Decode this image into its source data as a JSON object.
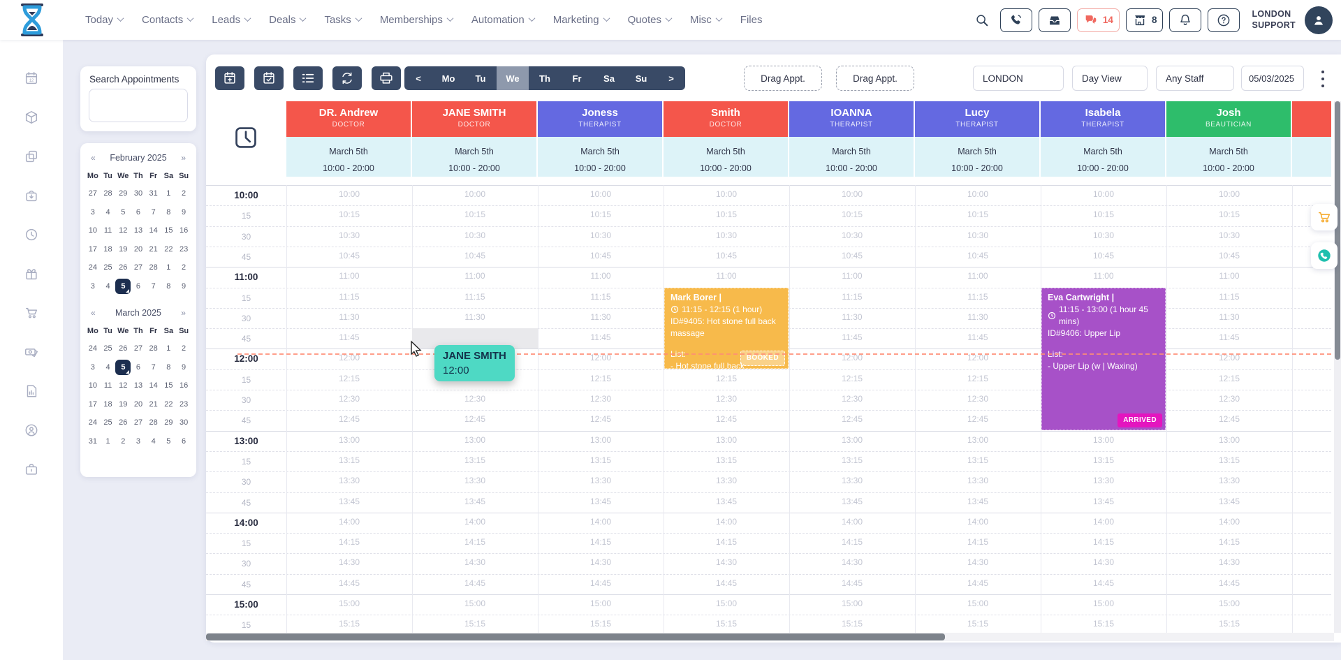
{
  "nav": {
    "items": [
      {
        "label": "Today",
        "has_menu": true
      },
      {
        "label": "Contacts",
        "has_menu": true
      },
      {
        "label": "Leads",
        "has_menu": true
      },
      {
        "label": "Deals",
        "has_menu": true
      },
      {
        "label": "Tasks",
        "has_menu": true
      },
      {
        "label": "Memberships",
        "has_menu": true
      },
      {
        "label": "Automation",
        "has_menu": true
      },
      {
        "label": "Marketing",
        "has_menu": true
      },
      {
        "label": "Quotes",
        "has_menu": true
      },
      {
        "label": "Misc",
        "has_menu": true
      },
      {
        "label": "Files",
        "has_menu": false
      }
    ]
  },
  "topbar": {
    "chat_count": "14",
    "store_count": "8",
    "user_line1": "LONDON",
    "user_line2": "SUPPORT",
    "icon_buttons": [
      "phone",
      "inbox",
      "chat",
      "store",
      "bell",
      "help"
    ]
  },
  "sidebar": {
    "icons": [
      "calendar-date",
      "package",
      "copy",
      "bag-arrow",
      "history",
      "gift",
      "cart",
      "money",
      "report",
      "user-circle",
      "briefcase"
    ]
  },
  "search_panel": {
    "title": "Search Appointments",
    "value": "",
    "placeholder": ""
  },
  "calendars": [
    {
      "title": "February 2025",
      "prev": "«",
      "next": "»",
      "weekdays": [
        "Mo",
        "Tu",
        "We",
        "Th",
        "Fr",
        "Sa",
        "Su"
      ],
      "weeks": [
        [
          "27",
          "28",
          "29",
          "30",
          "31",
          "1",
          "2"
        ],
        [
          "3",
          "4",
          "5",
          "6",
          "7",
          "8",
          "9"
        ],
        [
          "10",
          "11",
          "12",
          "13",
          "14",
          "15",
          "16"
        ],
        [
          "17",
          "18",
          "19",
          "20",
          "21",
          "22",
          "23"
        ],
        [
          "24",
          "25",
          "26",
          "27",
          "28",
          "1",
          "2"
        ],
        [
          "3",
          "4",
          "5",
          "6",
          "7",
          "8",
          "9"
        ]
      ],
      "selected_week": 5,
      "selected_day": 2
    },
    {
      "title": "March 2025",
      "prev": "«",
      "next": "»",
      "weekdays": [
        "Mo",
        "Tu",
        "We",
        "Th",
        "Fr",
        "Sa",
        "Su"
      ],
      "weeks": [
        [
          "24",
          "25",
          "26",
          "27",
          "28",
          "1",
          "2"
        ],
        [
          "3",
          "4",
          "5",
          "6",
          "7",
          "8",
          "9"
        ],
        [
          "10",
          "11",
          "12",
          "13",
          "14",
          "15",
          "16"
        ],
        [
          "17",
          "18",
          "19",
          "20",
          "21",
          "22",
          "23"
        ],
        [
          "24",
          "25",
          "26",
          "27",
          "28",
          "29",
          "30"
        ],
        [
          "31",
          "1",
          "2",
          "3",
          "4",
          "5",
          "6"
        ]
      ],
      "selected_week": 1,
      "selected_day": 2
    }
  ],
  "toolbar": {
    "buttons": [
      "calendar-add",
      "calendar-check",
      "checklist",
      "refresh",
      "print"
    ],
    "day_nav": {
      "prev": "<",
      "days": [
        "Mo",
        "Tu",
        "We",
        "Th",
        "Fr",
        "Sa",
        "Su"
      ],
      "active_day": "We",
      "next": ">"
    },
    "drag_buttons": [
      "Drag Appt.",
      "Drag Appt."
    ],
    "location_select": "LONDON",
    "view_select": "Day View",
    "staff_select": "Any Staff",
    "date_value": "05/03/2025"
  },
  "grid": {
    "columns": [
      {
        "name": "DR. Andrew",
        "role": "DOCTOR",
        "color": "#F4564B",
        "date": "March 5th",
        "hours": "10:00 - 20:00"
      },
      {
        "name": "JANE SMITH",
        "role": "DOCTOR",
        "color": "#F4564B",
        "date": "March 5th",
        "hours": "10:00 - 20:00"
      },
      {
        "name": "Joness",
        "role": "THERAPIST",
        "color": "#6469E1",
        "date": "March 5th",
        "hours": "10:00 - 20:00"
      },
      {
        "name": "Smith",
        "role": "DOCTOR",
        "color": "#F4564B",
        "date": "March 5th",
        "hours": "10:00 - 20:00"
      },
      {
        "name": "IOANNA",
        "role": "THERAPIST",
        "color": "#6469E1",
        "date": "March 5th",
        "hours": "10:00 - 20:00"
      },
      {
        "name": "Lucy",
        "role": "THERAPIST",
        "color": "#6469E1",
        "date": "March 5th",
        "hours": "10:00 - 20:00"
      },
      {
        "name": "Isabela",
        "role": "THERAPIST",
        "color": "#6469E1",
        "date": "March 5th",
        "hours": "10:00 - 20:00"
      },
      {
        "name": "Josh",
        "role": "BEAUTICIAN",
        "color": "#2EBD6B",
        "date": "March 5th",
        "hours": "10:00 - 20:00"
      }
    ],
    "partial_column_color": "#F4564B",
    "time_slots": [
      "10:00",
      "10:15",
      "10:30",
      "10:45",
      "11:00",
      "11:15",
      "11:30",
      "11:45",
      "12:00",
      "12:15",
      "12:30",
      "12:45",
      "13:00",
      "13:15",
      "13:30",
      "13:45",
      "14:00",
      "14:15",
      "14:30",
      "14:45",
      "15:00",
      "15:15"
    ],
    "appointments": [
      {
        "column": 3,
        "start": "11:15",
        "end": "12:15",
        "title": "Mark Borer |",
        "time_text": "11:15 - 12:15 (1 hour)",
        "id_text": "ID#9405: Hot stone full back massage",
        "list_label": "List:",
        "list_items": [
          "- Hot stone full back"
        ],
        "status": "BOOKED",
        "status_type": "outline",
        "color": "#F7BA4B"
      },
      {
        "column": 6,
        "start": "11:15",
        "end": "13:00",
        "title": "Eva Cartwright |",
        "time_text": "11:15 - 13:00 (1 hour 45 mins)",
        "id_text": "ID#9406: Upper Lip",
        "list_label": "List:",
        "list_items": [
          "- Upper Lip (w | Waxing)"
        ],
        "status": "ARRIVED",
        "status_type": "solid",
        "status_color": "#E415BF",
        "color": "#A751C8"
      }
    ],
    "hover": {
      "column": 1,
      "slot": "11:45"
    },
    "tooltip": {
      "name": "JANE SMITH",
      "time": "12:00",
      "color": "#4ED9C4"
    }
  },
  "floating_buttons": [
    "cart",
    "phone-call"
  ]
}
